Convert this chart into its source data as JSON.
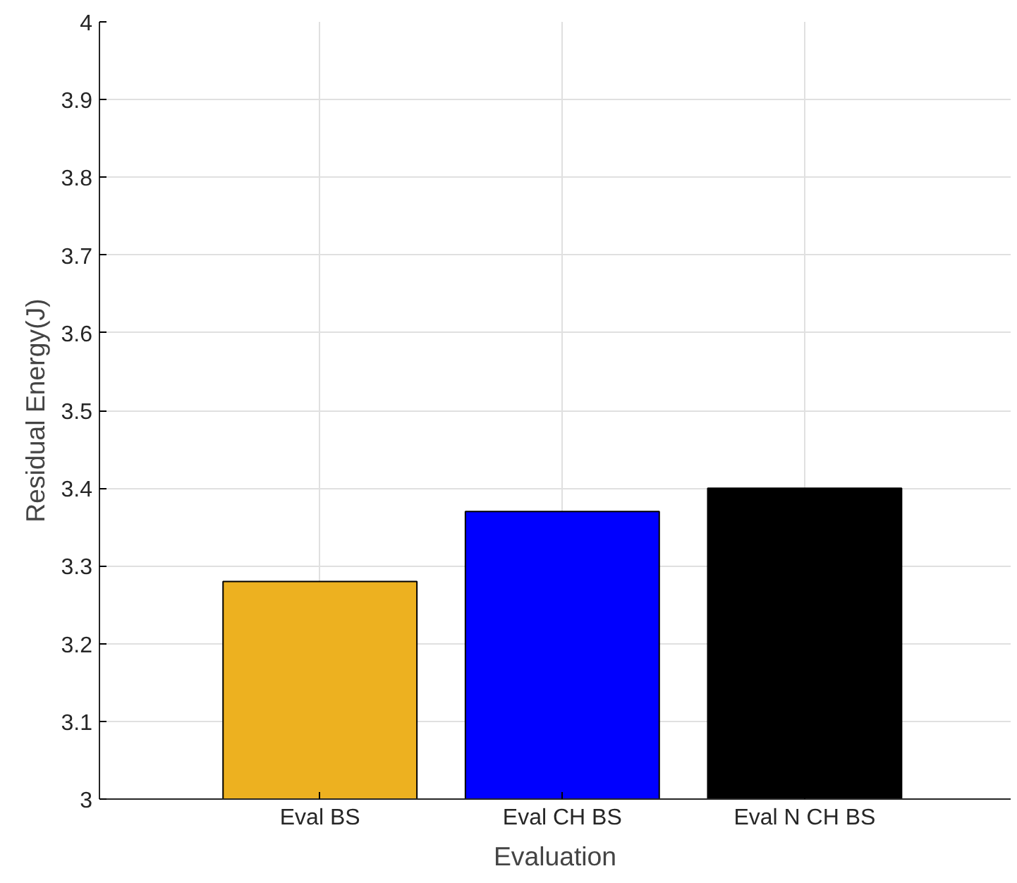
{
  "chart_data": {
    "type": "bar",
    "xlabel": "Evaluation",
    "ylabel": "Residual Energy(J)",
    "categories": [
      "Eval BS",
      "Eval CH BS",
      "Eval N CH BS"
    ],
    "values": [
      3.28,
      3.37,
      3.4
    ],
    "colors": [
      "#edb120",
      "#0000ff",
      "#000000"
    ],
    "ylim": [
      3,
      4
    ],
    "yticks": [
      3,
      3.1,
      3.2,
      3.3,
      3.4,
      3.5,
      3.6,
      3.7,
      3.8,
      3.9,
      4
    ],
    "grid": true
  }
}
